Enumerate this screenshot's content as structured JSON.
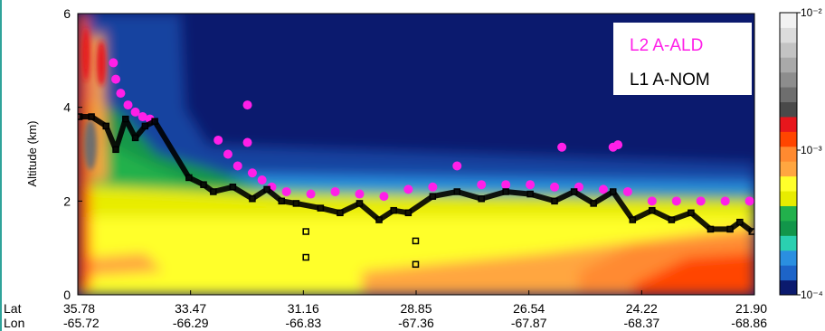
{
  "chart_data": {
    "type": "heatmap",
    "title": "",
    "ylabel": "Altitude (km)",
    "ylim": [
      0,
      6
    ],
    "y_ticks": [
      0,
      2,
      4,
      6
    ],
    "x_row_labels": [
      "Lat",
      "Lon"
    ],
    "lat_ticks": [
      "35.78",
      "33.47",
      "31.16",
      "28.85",
      "26.54",
      "24.22",
      "21.90"
    ],
    "lon_ticks": [
      "-65.72",
      "-66.29",
      "-66.83",
      "-67.36",
      "-67.87",
      "-68.37",
      "-68.86"
    ],
    "colorbar": {
      "scale": "log",
      "tick_labels": [
        "10⁻²",
        "10⁻³",
        "10⁻⁴"
      ],
      "colors": [
        "#0b1a6e",
        "#1d64c8",
        "#2a8fe0",
        "#2ad0b0",
        "#12964a",
        "#22b14c",
        "#e8ec00",
        "#ffff2a",
        "#ffa640",
        "#ff8a30",
        "#ff4500",
        "#e8161c",
        "#4a4a4a",
        "#6e6e6e",
        "#8d8d8d",
        "#a9a9a9",
        "#c3c3c3",
        "#dcdcdc",
        "#f2f2f2"
      ]
    },
    "series": [
      {
        "name": "L2 A-ALD",
        "color": "#ff1fe8",
        "marker": "filled-circle",
        "points": [
          [
            35.05,
            4.95
          ],
          [
            35.0,
            4.6
          ],
          [
            34.9,
            4.3
          ],
          [
            34.75,
            4.05
          ],
          [
            34.6,
            3.9
          ],
          [
            34.45,
            3.8
          ],
          [
            34.3,
            3.75
          ],
          [
            32.9,
            3.3
          ],
          [
            32.7,
            3.0
          ],
          [
            32.5,
            2.75
          ],
          [
            32.3,
            4.05
          ],
          [
            32.3,
            3.25
          ],
          [
            32.2,
            2.6
          ],
          [
            32.0,
            2.45
          ],
          [
            31.8,
            2.3
          ],
          [
            31.5,
            2.2
          ],
          [
            31.0,
            2.15
          ],
          [
            30.5,
            2.2
          ],
          [
            30.0,
            2.15
          ],
          [
            29.5,
            2.1
          ],
          [
            29.0,
            2.25
          ],
          [
            28.5,
            2.3
          ],
          [
            28.0,
            2.75
          ],
          [
            27.5,
            2.35
          ],
          [
            27.0,
            2.35
          ],
          [
            26.5,
            2.35
          ],
          [
            26.0,
            2.3
          ],
          [
            25.85,
            3.15
          ],
          [
            25.5,
            2.3
          ],
          [
            25.0,
            2.25
          ],
          [
            24.8,
            3.15
          ],
          [
            24.7,
            3.2
          ],
          [
            24.5,
            2.2
          ],
          [
            24.0,
            2.0
          ],
          [
            23.5,
            2.0
          ],
          [
            23.0,
            2.0
          ],
          [
            22.5,
            2.0
          ],
          [
            22.0,
            2.0
          ]
        ]
      },
      {
        "name": "L1 A-NOM",
        "color": "#000000",
        "marker": "open-square",
        "points": [
          [
            35.75,
            3.8
          ],
          [
            35.5,
            3.8
          ],
          [
            35.2,
            3.6
          ],
          [
            35.0,
            3.1
          ],
          [
            34.8,
            3.75
          ],
          [
            34.6,
            3.35
          ],
          [
            34.4,
            3.6
          ],
          [
            34.2,
            3.7
          ],
          [
            33.5,
            2.5
          ],
          [
            33.2,
            2.35
          ],
          [
            33.0,
            2.2
          ],
          [
            32.6,
            2.3
          ],
          [
            32.2,
            2.05
          ],
          [
            31.9,
            2.25
          ],
          [
            31.6,
            2.0
          ],
          [
            31.3,
            1.95
          ],
          [
            31.1,
            1.35
          ],
          [
            31.1,
            0.8
          ],
          [
            30.8,
            1.85
          ],
          [
            30.4,
            1.75
          ],
          [
            30.0,
            1.95
          ],
          [
            29.6,
            1.6
          ],
          [
            29.3,
            1.8
          ],
          [
            29.0,
            1.75
          ],
          [
            28.85,
            1.15
          ],
          [
            28.85,
            0.65
          ],
          [
            28.5,
            2.1
          ],
          [
            28.0,
            2.2
          ],
          [
            27.5,
            2.05
          ],
          [
            27.0,
            2.2
          ],
          [
            26.5,
            2.15
          ],
          [
            26.0,
            2.0
          ],
          [
            25.6,
            2.2
          ],
          [
            25.2,
            1.95
          ],
          [
            24.8,
            2.2
          ],
          [
            24.4,
            1.6
          ],
          [
            24.0,
            1.8
          ],
          [
            23.6,
            1.6
          ],
          [
            23.2,
            1.75
          ],
          [
            22.8,
            1.4
          ],
          [
            22.4,
            1.4
          ],
          [
            22.2,
            1.55
          ],
          [
            21.95,
            1.35
          ]
        ]
      }
    ]
  }
}
